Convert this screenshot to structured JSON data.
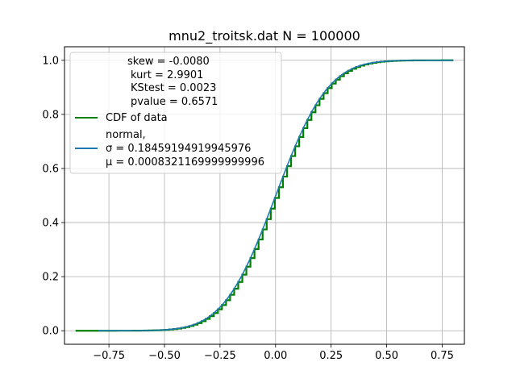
{
  "chart_data": {
    "type": "line",
    "title": "mnu2_troitsk.dat  N = 100000",
    "xlabel": "",
    "ylabel": "",
    "xlim": [
      -0.95,
      0.85
    ],
    "ylim": [
      -0.05,
      1.05
    ],
    "x_ticks": [
      -0.75,
      -0.5,
      -0.25,
      0.0,
      0.25,
      0.5,
      0.75
    ],
    "x_tick_labels": [
      "−0.75",
      "−0.50",
      "−0.25",
      "0.00",
      "0.25",
      "0.50",
      "0.75"
    ],
    "y_ticks": [
      0.0,
      0.2,
      0.4,
      0.6,
      0.8,
      1.0
    ],
    "y_tick_labels": [
      "0.0",
      "0.2",
      "0.4",
      "0.6",
      "0.8",
      "1.0"
    ],
    "grid": true,
    "legend_position": "top-left",
    "stats_lines": [
      "skew = -0.0080",
      "kurt = 2.9901",
      "KStest = 0.0023",
      "pvalue = 0.6571"
    ],
    "series": [
      {
        "name": "CDF of data",
        "color": "#008000",
        "style": "step",
        "x_range": [
          -0.9,
          0.8
        ],
        "step_width": 0.0183,
        "sigma": 0.18459194919945976,
        "mu": 0.000832116999999999
      },
      {
        "name": "normal",
        "legend_lines": [
          "normal,",
          "σ = 0.18459194919945976",
          "μ = 0.0008321169999999996"
        ],
        "color": "#1f77b4",
        "style": "line",
        "x_range": [
          -0.8,
          0.8
        ],
        "sigma": 0.18459194919945976,
        "mu": 0.000832116999999999
      }
    ]
  }
}
